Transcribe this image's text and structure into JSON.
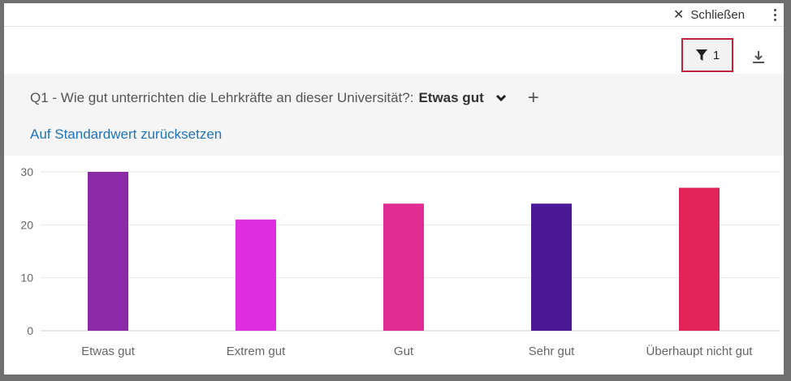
{
  "topbar": {
    "close_label": "Schließen",
    "close_icon": "close-icon",
    "more_icon": "more-vertical-icon"
  },
  "toolbar": {
    "filter_count": "1",
    "filter_icon": "funnel-icon",
    "download_icon": "download-icon",
    "highlight_color": "#c0213b"
  },
  "filter": {
    "question": "Q1 - Wie gut unterrichten die Lehrkräfte an dieser Universität?:",
    "value": "Etwas gut",
    "reset_label": "Auf Standardwert zurücksetzen",
    "link_color": "#1f74b9"
  },
  "chart_data": {
    "type": "bar",
    "categories": [
      "Etwas gut",
      "Extrem gut",
      "Gut",
      "Sehr gut",
      "Überhaupt nicht gut"
    ],
    "values": [
      30,
      21,
      24,
      24,
      27
    ],
    "colors": [
      "#8a2aa6",
      "#df2de0",
      "#e12c93",
      "#4b1998",
      "#e12457"
    ],
    "ylim": [
      0,
      30
    ],
    "yticks": [
      0,
      10,
      20,
      30
    ],
    "grid": true,
    "title": "",
    "xlabel": "",
    "ylabel": ""
  }
}
